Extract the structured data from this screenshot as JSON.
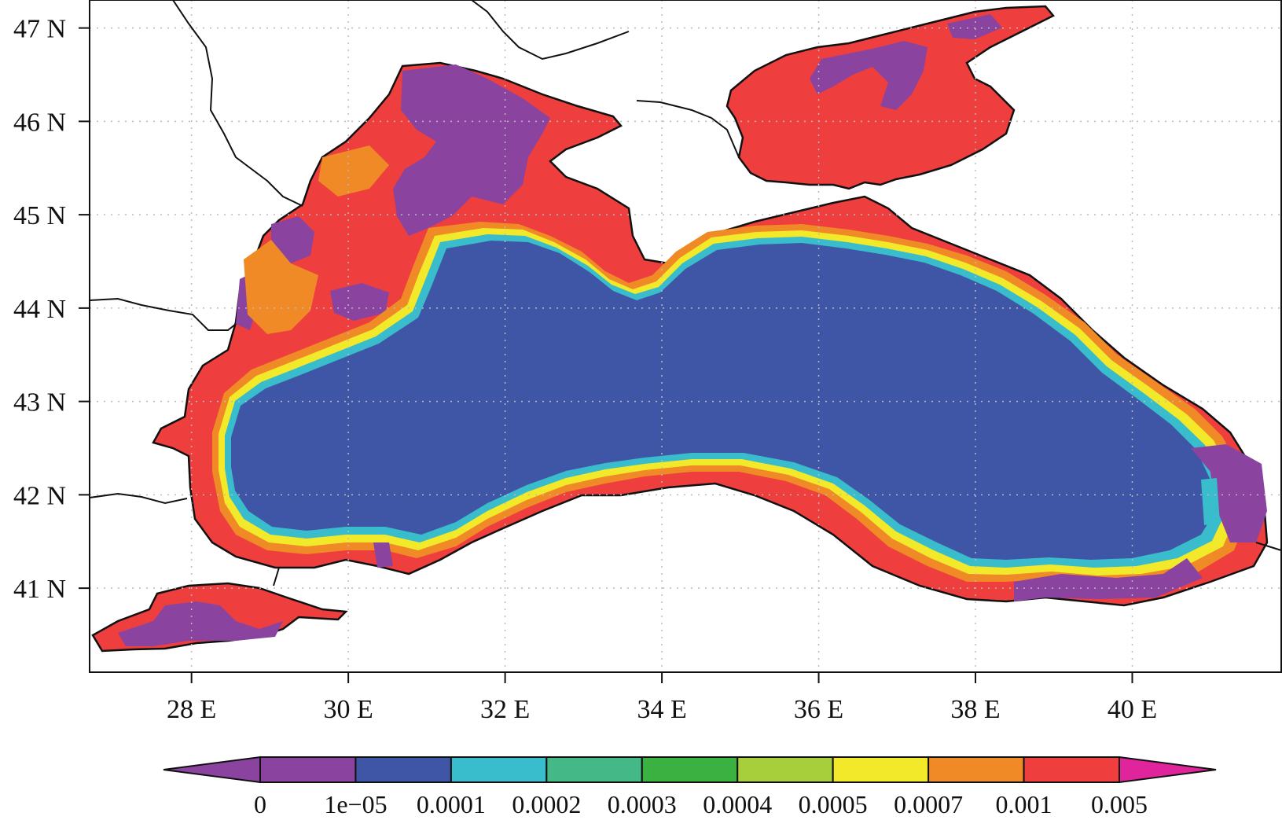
{
  "map": {
    "region": "Black Sea and Sea of Azov",
    "x_axis": {
      "ticks": [
        {
          "value": 28,
          "label": "28 E"
        },
        {
          "value": 30,
          "label": "30 E"
        },
        {
          "value": 32,
          "label": "32 E"
        },
        {
          "value": 34,
          "label": "34 E"
        },
        {
          "value": 36,
          "label": "36 E"
        },
        {
          "value": 38,
          "label": "38 E"
        },
        {
          "value": 40,
          "label": "40 E"
        }
      ],
      "range": [
        26.7,
        41.9
      ]
    },
    "y_axis": {
      "ticks": [
        {
          "value": 41,
          "label": "41 N"
        },
        {
          "value": 42,
          "label": "42 N"
        },
        {
          "value": 43,
          "label": "43 N"
        },
        {
          "value": 44,
          "label": "44 N"
        },
        {
          "value": 45,
          "label": "45 N"
        },
        {
          "value": 46,
          "label": "46 N"
        },
        {
          "value": 47,
          "label": "47 N"
        }
      ],
      "range": [
        40.1,
        47.3
      ]
    },
    "grid": "dotted",
    "colors": {
      "land": "#ffffff",
      "coastline": "#111111",
      "deep_sea": "#3f56a6",
      "shelf": "#ee3e3e",
      "low": "#8a44a0",
      "edge": "#f08a26"
    }
  },
  "colorbar": {
    "labels": [
      "0",
      "1e−05",
      "0.0001",
      "0.0002",
      "0.0003",
      "0.0004",
      "0.0005",
      "0.0007",
      "0.001",
      "0.005"
    ],
    "colors": [
      "#8a44a0",
      "#8a44a0",
      "#3f56a6",
      "#39bccb",
      "#45b888",
      "#3bb142",
      "#a7cf3c",
      "#f2e92a",
      "#f08a26",
      "#ee3e3e",
      "#e0259c"
    ]
  }
}
